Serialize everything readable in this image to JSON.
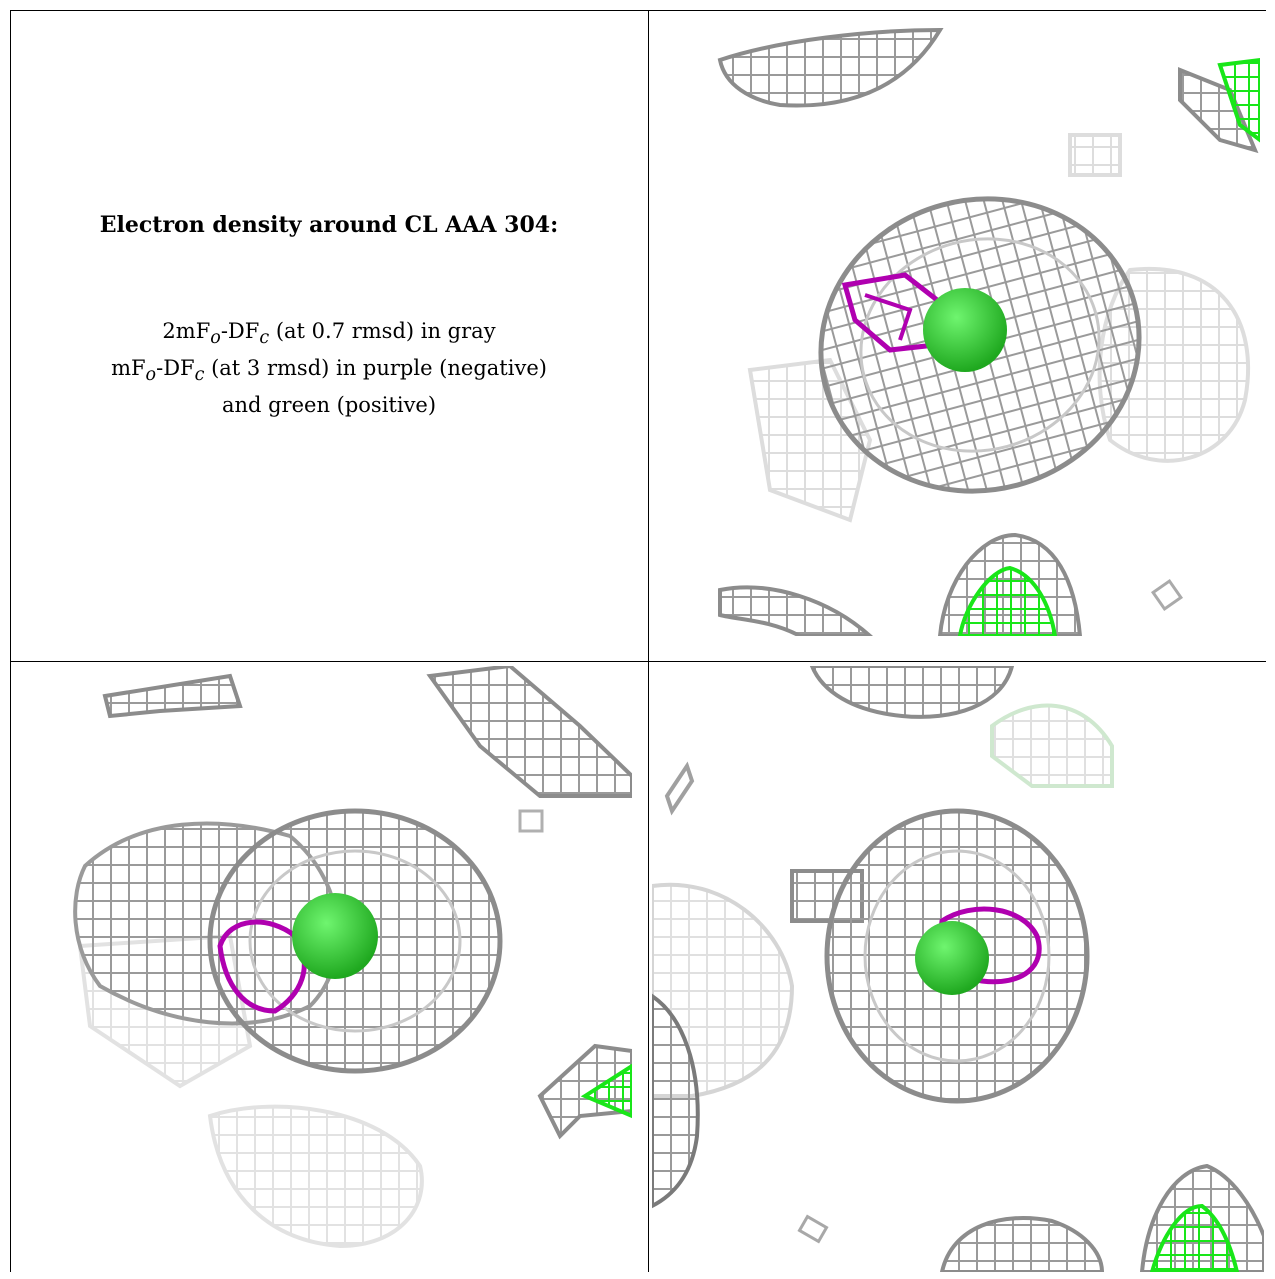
{
  "legend": {
    "title": "Electron density around CL AAA 304:",
    "lines": [
      {
        "main": "2mF",
        "sub1": "o",
        "mid": "-DF",
        "sub2": "c",
        "rest": " (at 0.7 rmsd) in gray"
      },
      {
        "main": "mF",
        "sub1": "o",
        "mid": "-DF",
        "sub2": "c",
        "rest": " (at 3 rmsd) in purple (negative)"
      },
      {
        "text": "and green (positive)"
      }
    ]
  },
  "panels": [
    {
      "name": "view-1",
      "mesh_gray": "#8c8c8c",
      "mesh_purple": "#b000b0",
      "mesh_green": "#19e619",
      "sphere_green": "#26c826"
    },
    {
      "name": "view-2",
      "mesh_gray": "#8c8c8c",
      "mesh_purple": "#b000b0",
      "mesh_green": "#19e619",
      "sphere_green": "#26c826"
    },
    {
      "name": "view-3",
      "mesh_gray": "#8c8c8c",
      "mesh_purple": "#b000b0",
      "mesh_green": "#19e619",
      "sphere_green": "#26c826"
    }
  ]
}
